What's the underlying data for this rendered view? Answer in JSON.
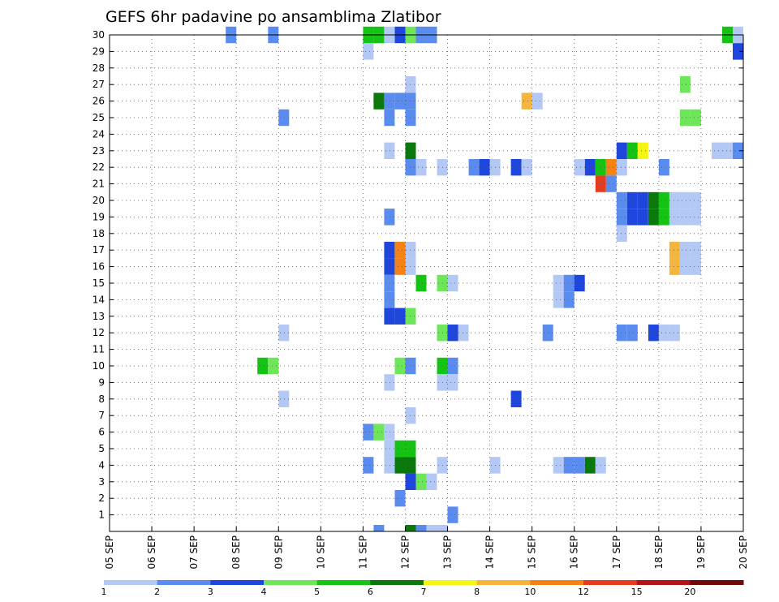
{
  "chart_data": {
    "type": "heatmap",
    "title": "GEFS 6hr padavine po ansamblima Zlatibor",
    "x_tick_labels": [
      "05 SEP",
      "06 SEP",
      "07 SEP",
      "08 SEP",
      "09 SEP",
      "10 SEP",
      "11 SEP",
      "12 SEP",
      "13 SEP",
      "14 SEP",
      "15 SEP",
      "16 SEP",
      "17 SEP",
      "18 SEP",
      "19 SEP",
      "20 SEP"
    ],
    "y_tick_labels": [
      "1",
      "2",
      "3",
      "4",
      "5",
      "6",
      "7",
      "8",
      "9",
      "10",
      "11",
      "12",
      "13",
      "14",
      "15",
      "16",
      "17",
      "18",
      "19",
      "20",
      "21",
      "22",
      "23",
      "24",
      "25",
      "26",
      "27",
      "28",
      "29",
      "30"
    ],
    "xlim_days": [
      0,
      15
    ],
    "ylim": [
      0,
      30
    ],
    "grid": true,
    "legend_placement": "bottom",
    "color_scale": {
      "thresholds": [
        "1",
        "2",
        "3",
        "4",
        "5",
        "6",
        "7",
        "8",
        "10",
        "12",
        "15",
        "20"
      ],
      "colors": [
        "#b4c8f5",
        "#5a8cf0",
        "#1e46dc",
        "#6ee65a",
        "#14c314",
        "#0a780a",
        "#f5f514",
        "#f5b43c",
        "#f58214",
        "#e63c1e",
        "#b41414",
        "#6e0a0a"
      ]
    },
    "cells": [
      {
        "member": 30,
        "day": 2.75,
        "cat": 2
      },
      {
        "member": 30,
        "day": 3.75,
        "cat": 2
      },
      {
        "member": 30,
        "day": 6.0,
        "cat": 5
      },
      {
        "member": 30,
        "day": 6.25,
        "cat": 5
      },
      {
        "member": 30,
        "day": 6.5,
        "cat": 1
      },
      {
        "member": 30,
        "day": 6.75,
        "cat": 3
      },
      {
        "member": 30,
        "day": 7.0,
        "cat": 4
      },
      {
        "member": 30,
        "day": 7.25,
        "cat": 2
      },
      {
        "member": 30,
        "day": 7.5,
        "cat": 2
      },
      {
        "member": 30,
        "day": 14.5,
        "cat": 5
      },
      {
        "member": 30,
        "day": 14.75,
        "cat": 1
      },
      {
        "member": 29,
        "day": 6.0,
        "cat": 1
      },
      {
        "member": 29,
        "day": 14.75,
        "cat": 3
      },
      {
        "member": 27,
        "day": 7.0,
        "cat": 1
      },
      {
        "member": 27,
        "day": 13.5,
        "cat": 4
      },
      {
        "member": 26,
        "day": 6.25,
        "cat": 6
      },
      {
        "member": 26,
        "day": 6.5,
        "cat": 2
      },
      {
        "member": 26,
        "day": 6.75,
        "cat": 2
      },
      {
        "member": 26,
        "day": 7.0,
        "cat": 2
      },
      {
        "member": 26,
        "day": 9.75,
        "cat": 8
      },
      {
        "member": 26,
        "day": 10.0,
        "cat": 1
      },
      {
        "member": 25,
        "day": 4.0,
        "cat": 2
      },
      {
        "member": 25,
        "day": 6.5,
        "cat": 2
      },
      {
        "member": 25,
        "day": 7.0,
        "cat": 2
      },
      {
        "member": 25,
        "day": 13.5,
        "cat": 4
      },
      {
        "member": 25,
        "day": 13.75,
        "cat": 4
      },
      {
        "member": 23,
        "day": 6.5,
        "cat": 1
      },
      {
        "member": 23,
        "day": 7.0,
        "cat": 6
      },
      {
        "member": 23,
        "day": 12.0,
        "cat": 3
      },
      {
        "member": 23,
        "day": 12.25,
        "cat": 5
      },
      {
        "member": 23,
        "day": 12.5,
        "cat": 7
      },
      {
        "member": 23,
        "day": 14.25,
        "cat": 1
      },
      {
        "member": 23,
        "day": 14.5,
        "cat": 1
      },
      {
        "member": 23,
        "day": 14.75,
        "cat": 2
      },
      {
        "member": 22,
        "day": 7.0,
        "cat": 2
      },
      {
        "member": 22,
        "day": 7.25,
        "cat": 1
      },
      {
        "member": 22,
        "day": 7.75,
        "cat": 1
      },
      {
        "member": 22,
        "day": 8.5,
        "cat": 2
      },
      {
        "member": 22,
        "day": 8.75,
        "cat": 3
      },
      {
        "member": 22,
        "day": 9.0,
        "cat": 1
      },
      {
        "member": 22,
        "day": 9.5,
        "cat": 3
      },
      {
        "member": 22,
        "day": 9.75,
        "cat": 1
      },
      {
        "member": 22,
        "day": 11.0,
        "cat": 1
      },
      {
        "member": 22,
        "day": 11.25,
        "cat": 3
      },
      {
        "member": 22,
        "day": 11.5,
        "cat": 5
      },
      {
        "member": 22,
        "day": 11.75,
        "cat": 9
      },
      {
        "member": 22,
        "day": 12.0,
        "cat": 1
      },
      {
        "member": 22,
        "day": 13.0,
        "cat": 2
      },
      {
        "member": 21,
        "day": 11.5,
        "cat": 10
      },
      {
        "member": 21,
        "day": 11.75,
        "cat": 2
      },
      {
        "member": 20,
        "day": 12.0,
        "cat": 2
      },
      {
        "member": 20,
        "day": 12.25,
        "cat": 3
      },
      {
        "member": 20,
        "day": 12.5,
        "cat": 3
      },
      {
        "member": 20,
        "day": 12.75,
        "cat": 6
      },
      {
        "member": 20,
        "day": 13.0,
        "cat": 5
      },
      {
        "member": 20,
        "day": 13.25,
        "cat": 1
      },
      {
        "member": 20,
        "day": 13.5,
        "cat": 1
      },
      {
        "member": 20,
        "day": 13.75,
        "cat": 1
      },
      {
        "member": 19,
        "day": 6.5,
        "cat": 2
      },
      {
        "member": 19,
        "day": 12.0,
        "cat": 2
      },
      {
        "member": 19,
        "day": 12.25,
        "cat": 3
      },
      {
        "member": 19,
        "day": 12.5,
        "cat": 3
      },
      {
        "member": 19,
        "day": 12.75,
        "cat": 6
      },
      {
        "member": 19,
        "day": 13.0,
        "cat": 5
      },
      {
        "member": 19,
        "day": 13.25,
        "cat": 1
      },
      {
        "member": 19,
        "day": 13.5,
        "cat": 1
      },
      {
        "member": 19,
        "day": 13.75,
        "cat": 1
      },
      {
        "member": 18,
        "day": 12.0,
        "cat": 1
      },
      {
        "member": 17,
        "day": 6.5,
        "cat": 3
      },
      {
        "member": 17,
        "day": 6.75,
        "cat": 9
      },
      {
        "member": 17,
        "day": 7.0,
        "cat": 1
      },
      {
        "member": 17,
        "day": 13.25,
        "cat": 8
      },
      {
        "member": 17,
        "day": 13.5,
        "cat": 1
      },
      {
        "member": 17,
        "day": 13.75,
        "cat": 1
      },
      {
        "member": 16,
        "day": 6.5,
        "cat": 3
      },
      {
        "member": 16,
        "day": 6.75,
        "cat": 9
      },
      {
        "member": 16,
        "day": 7.0,
        "cat": 1
      },
      {
        "member": 16,
        "day": 13.25,
        "cat": 8
      },
      {
        "member": 16,
        "day": 13.5,
        "cat": 1
      },
      {
        "member": 16,
        "day": 13.75,
        "cat": 1
      },
      {
        "member": 15,
        "day": 6.5,
        "cat": 2
      },
      {
        "member": 15,
        "day": 7.25,
        "cat": 5
      },
      {
        "member": 15,
        "day": 7.75,
        "cat": 4
      },
      {
        "member": 15,
        "day": 8.0,
        "cat": 1
      },
      {
        "member": 15,
        "day": 10.5,
        "cat": 1
      },
      {
        "member": 15,
        "day": 10.75,
        "cat": 2
      },
      {
        "member": 15,
        "day": 11.0,
        "cat": 3
      },
      {
        "member": 14,
        "day": 6.5,
        "cat": 2
      },
      {
        "member": 14,
        "day": 10.5,
        "cat": 1
      },
      {
        "member": 14,
        "day": 10.75,
        "cat": 2
      },
      {
        "member": 13,
        "day": 6.5,
        "cat": 3
      },
      {
        "member": 13,
        "day": 6.75,
        "cat": 3
      },
      {
        "member": 13,
        "day": 7.0,
        "cat": 4
      },
      {
        "member": 12,
        "day": 4.0,
        "cat": 1
      },
      {
        "member": 12,
        "day": 7.75,
        "cat": 4
      },
      {
        "member": 12,
        "day": 8.0,
        "cat": 3
      },
      {
        "member": 12,
        "day": 8.25,
        "cat": 1
      },
      {
        "member": 12,
        "day": 10.25,
        "cat": 2
      },
      {
        "member": 12,
        "day": 12.0,
        "cat": 2
      },
      {
        "member": 12,
        "day": 12.25,
        "cat": 2
      },
      {
        "member": 12,
        "day": 12.75,
        "cat": 3
      },
      {
        "member": 12,
        "day": 13.0,
        "cat": 1
      },
      {
        "member": 12,
        "day": 13.25,
        "cat": 1
      },
      {
        "member": 10,
        "day": 3.5,
        "cat": 5
      },
      {
        "member": 10,
        "day": 3.75,
        "cat": 4
      },
      {
        "member": 10,
        "day": 6.75,
        "cat": 4
      },
      {
        "member": 10,
        "day": 7.0,
        "cat": 2
      },
      {
        "member": 10,
        "day": 7.75,
        "cat": 5
      },
      {
        "member": 10,
        "day": 8.0,
        "cat": 2
      },
      {
        "member": 9,
        "day": 6.5,
        "cat": 1
      },
      {
        "member": 9,
        "day": 7.75,
        "cat": 1
      },
      {
        "member": 9,
        "day": 8.0,
        "cat": 1
      },
      {
        "member": 8,
        "day": 4.0,
        "cat": 1
      },
      {
        "member": 8,
        "day": 9.5,
        "cat": 3
      },
      {
        "member": 7,
        "day": 7.0,
        "cat": 1
      },
      {
        "member": 6,
        "day": 6.0,
        "cat": 2
      },
      {
        "member": 6,
        "day": 6.25,
        "cat": 4
      },
      {
        "member": 6,
        "day": 6.5,
        "cat": 1
      },
      {
        "member": 5,
        "day": 6.5,
        "cat": 1
      },
      {
        "member": 5,
        "day": 6.75,
        "cat": 5
      },
      {
        "member": 5,
        "day": 7.0,
        "cat": 5
      },
      {
        "member": 4,
        "day": 6.0,
        "cat": 2
      },
      {
        "member": 4,
        "day": 6.5,
        "cat": 1
      },
      {
        "member": 4,
        "day": 6.75,
        "cat": 6
      },
      {
        "member": 4,
        "day": 7.0,
        "cat": 6
      },
      {
        "member": 4,
        "day": 7.75,
        "cat": 1
      },
      {
        "member": 4,
        "day": 9.0,
        "cat": 1
      },
      {
        "member": 4,
        "day": 10.5,
        "cat": 1
      },
      {
        "member": 4,
        "day": 10.75,
        "cat": 2
      },
      {
        "member": 4,
        "day": 11.0,
        "cat": 2
      },
      {
        "member": 4,
        "day": 11.25,
        "cat": 6
      },
      {
        "member": 4,
        "day": 11.5,
        "cat": 1
      },
      {
        "member": 3,
        "day": 7.0,
        "cat": 3
      },
      {
        "member": 3,
        "day": 7.25,
        "cat": 4
      },
      {
        "member": 3,
        "day": 7.5,
        "cat": 1
      },
      {
        "member": 2,
        "day": 6.75,
        "cat": 2
      },
      {
        "member": 1,
        "day": 8.0,
        "cat": 2
      },
      {
        "member": 0,
        "day": 6.25,
        "cat": 2
      },
      {
        "member": 0,
        "day": 7.0,
        "cat": 6
      },
      {
        "member": 0,
        "day": 7.25,
        "cat": 2
      },
      {
        "member": 0,
        "day": 7.5,
        "cat": 1
      },
      {
        "member": 0,
        "day": 7.75,
        "cat": 1
      }
    ]
  }
}
